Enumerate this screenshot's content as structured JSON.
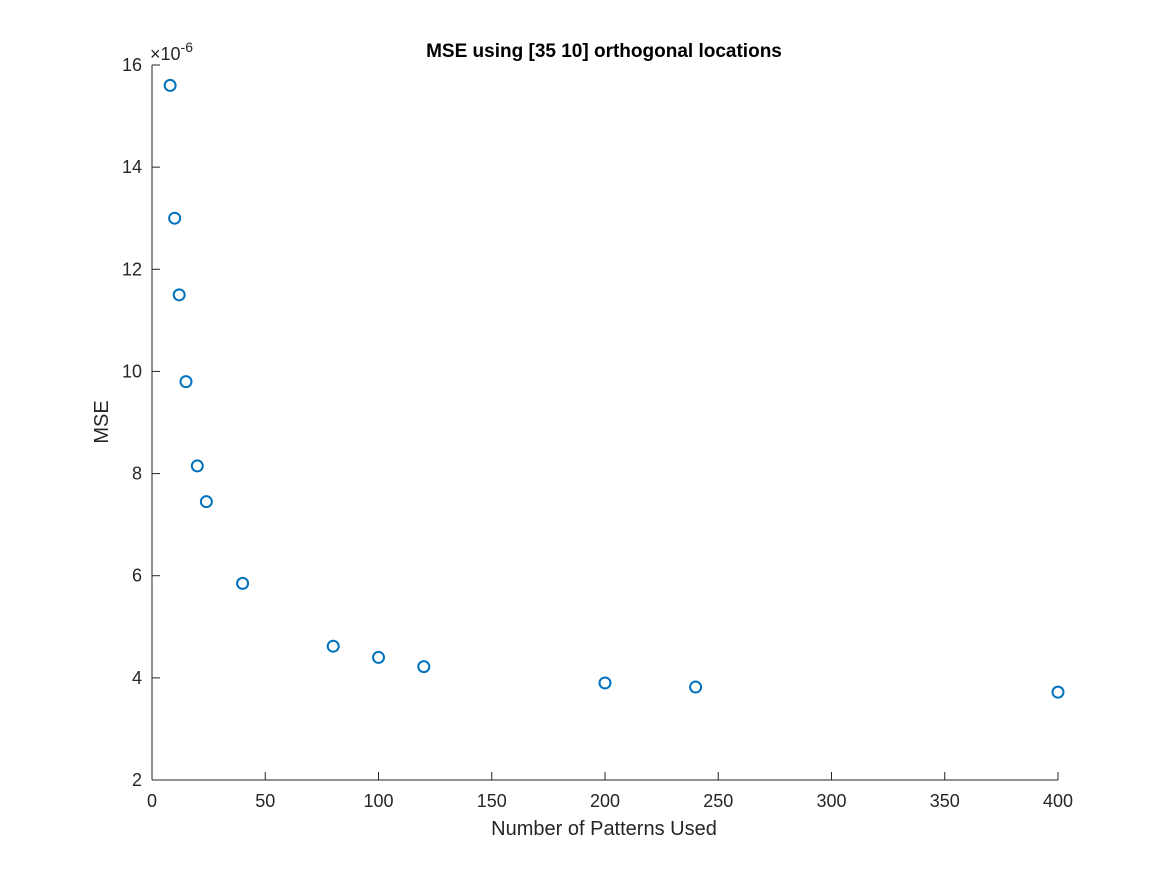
{
  "chart_data": {
    "type": "scatter",
    "title": "MSE using [35 10] orthogonal locations",
    "xlabel": "Number of Patterns Used",
    "ylabel": "MSE",
    "y_exponent_label": "×10",
    "y_exponent_power": "-6",
    "xlim": [
      0,
      400
    ],
    "ylim": [
      2,
      16
    ],
    "x_ticks": [
      0,
      50,
      100,
      150,
      200,
      250,
      300,
      350,
      400
    ],
    "y_ticks": [
      2,
      4,
      6,
      8,
      10,
      12,
      14,
      16
    ],
    "grid": false,
    "marker": "circle",
    "color": "#0072bd",
    "series": [
      {
        "x": [
          8,
          10,
          12,
          15,
          20,
          24,
          40,
          80,
          100,
          120,
          200,
          240,
          400
        ],
        "y": [
          15.6,
          13.0,
          11.5,
          9.8,
          8.15,
          7.45,
          5.85,
          4.62,
          4.4,
          4.22,
          3.9,
          3.82,
          3.72
        ]
      }
    ]
  }
}
